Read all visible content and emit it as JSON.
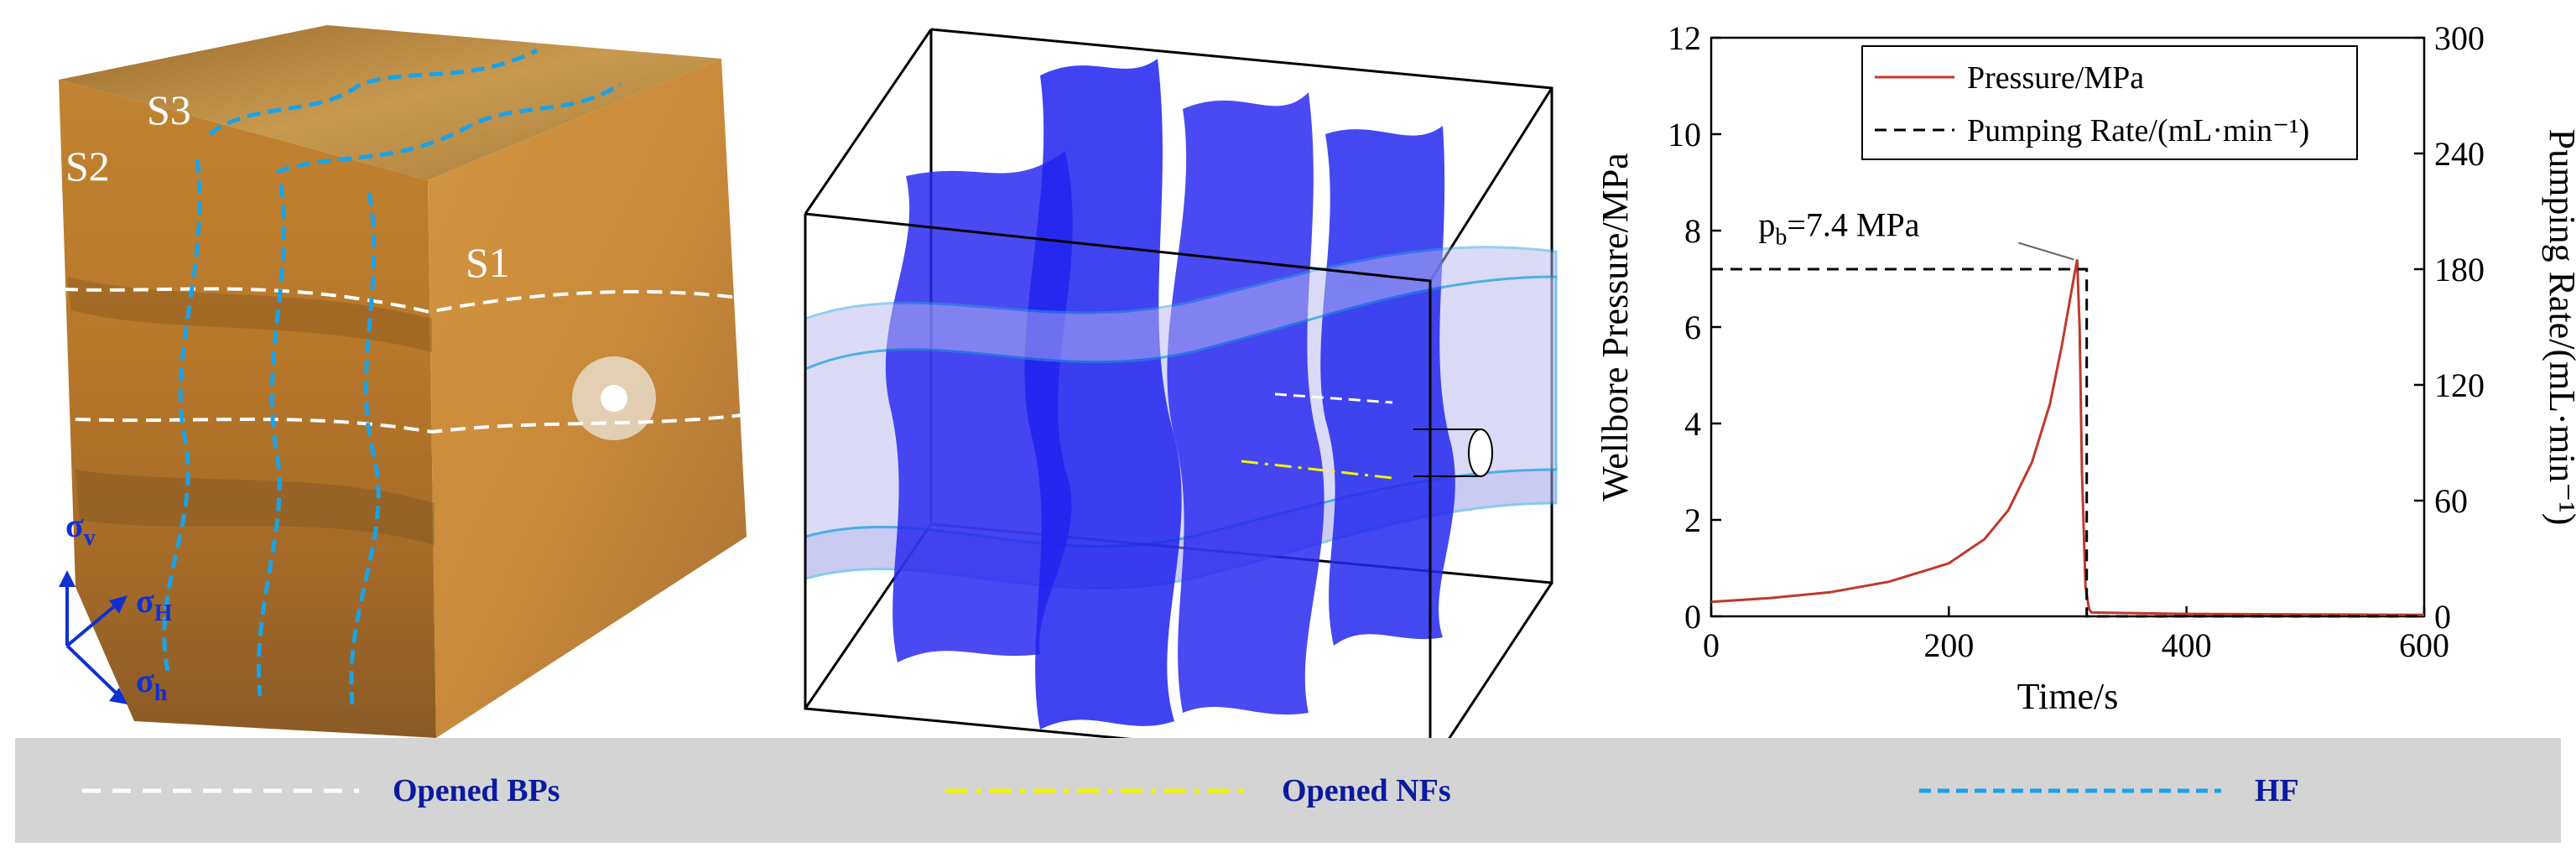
{
  "photo": {
    "face_labels": [
      "S3",
      "S2",
      "S1"
    ],
    "stress_labels": {
      "v": "v",
      "H": "H",
      "h": "h"
    }
  },
  "chart_data": {
    "type": "line",
    "xlabel": "Time/s",
    "ylabel_left": "Wellbore Pressure/MPa",
    "ylabel_right": "Pumping Rate/(mL·min⁻¹)",
    "xlim": [
      0,
      600
    ],
    "ylim_left": [
      0,
      12
    ],
    "ylim_right": [
      0,
      300
    ],
    "x_ticks": [
      0,
      200,
      400,
      600
    ],
    "y_ticks_left": [
      0,
      2,
      4,
      6,
      8,
      10,
      12
    ],
    "y_ticks_right": [
      0,
      60,
      120,
      180,
      240,
      300
    ],
    "series": [
      {
        "name": "Pressure/MPa",
        "axis": "left",
        "color": "#c0392b",
        "style": "solid",
        "x": [
          0,
          50,
          100,
          150,
          200,
          230,
          250,
          270,
          285,
          295,
          300,
          305,
          308,
          310,
          312,
          315,
          318,
          320,
          400,
          500,
          600
        ],
        "y": [
          0.3,
          0.38,
          0.5,
          0.72,
          1.1,
          1.6,
          2.2,
          3.2,
          4.4,
          5.6,
          6.3,
          7.0,
          7.4,
          6.0,
          3.0,
          0.6,
          0.15,
          0.08,
          0.05,
          0.04,
          0.03
        ]
      },
      {
        "name": "Pumping Rate/(mL·min⁻¹)",
        "axis": "right",
        "color": "#000000",
        "style": "dashed",
        "x": [
          0,
          316,
          316,
          600
        ],
        "y": [
          180,
          180,
          0,
          0
        ]
      }
    ],
    "annotations": [
      {
        "text_base": "p",
        "text_sub": "b",
        "text_rest": "=7.4 MPa",
        "x": 308,
        "y": 7.4
      }
    ],
    "legend_position": "top-right"
  },
  "legend": {
    "items": [
      {
        "label": "Opened BPs",
        "color": "#ffffff",
        "dash": "22 14"
      },
      {
        "label": "Opened NFs",
        "color": "#f4f400",
        "dash": "26 10 6 10"
      },
      {
        "label": "HF",
        "color": "#1aa3e8",
        "dash": "14 8"
      }
    ]
  }
}
